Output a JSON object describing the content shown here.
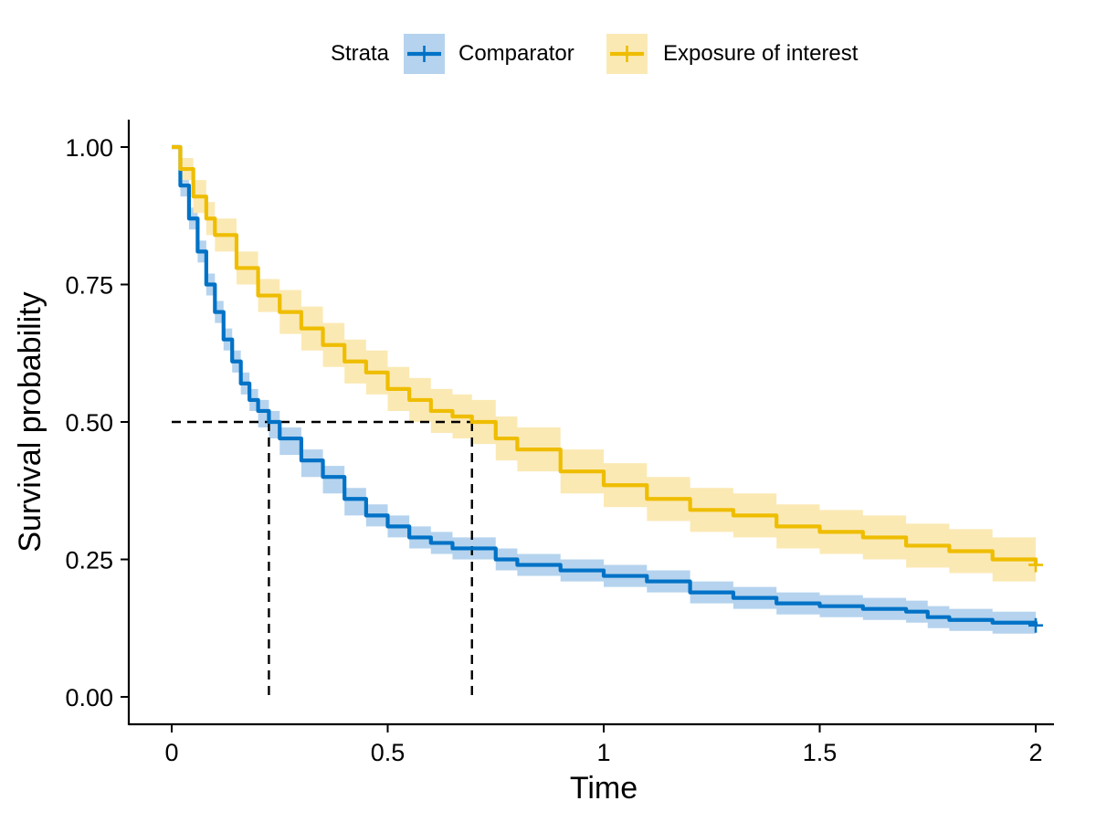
{
  "chart_data": {
    "type": "line",
    "subtype": "kaplan-meier survival curve",
    "xlabel": "Time",
    "ylabel": "Survival probability",
    "xlim": [
      0,
      2
    ],
    "ylim": [
      0,
      1
    ],
    "x_ticks": [
      0,
      0.5,
      1,
      1.5,
      2
    ],
    "x_tick_labels": [
      "0",
      "0.5",
      "1",
      "1.5",
      "2"
    ],
    "y_ticks": [
      0,
      0.25,
      0.5,
      0.75,
      1.0
    ],
    "y_tick_labels": [
      "0.00",
      "0.25",
      "0.50",
      "0.75",
      "1.00"
    ],
    "grid": false,
    "legend": {
      "placement": "top",
      "title": "Strata",
      "entries": [
        "Comparator",
        "Exposure of interest"
      ]
    },
    "median_reference": {
      "y": 0.5,
      "x_values": [
        0.225,
        0.695
      ]
    },
    "series": [
      {
        "name": "Comparator",
        "color": "#0072c6",
        "band_color": "#b5d3ee",
        "x": [
          0,
          0.02,
          0.04,
          0.06,
          0.08,
          0.1,
          0.12,
          0.14,
          0.16,
          0.18,
          0.2,
          0.225,
          0.25,
          0.3,
          0.35,
          0.4,
          0.45,
          0.5,
          0.55,
          0.6,
          0.65,
          0.7,
          0.75,
          0.8,
          0.9,
          1.0,
          1.1,
          1.2,
          1.3,
          1.4,
          1.5,
          1.6,
          1.7,
          1.75,
          1.8,
          1.9,
          2.0
        ],
        "y": [
          1.0,
          0.93,
          0.87,
          0.81,
          0.75,
          0.7,
          0.65,
          0.61,
          0.57,
          0.54,
          0.52,
          0.5,
          0.47,
          0.43,
          0.4,
          0.36,
          0.33,
          0.31,
          0.29,
          0.28,
          0.27,
          0.27,
          0.25,
          0.24,
          0.23,
          0.22,
          0.21,
          0.19,
          0.18,
          0.17,
          0.165,
          0.16,
          0.155,
          0.145,
          0.14,
          0.135,
          0.13
        ],
        "lower": [
          1.0,
          0.91,
          0.85,
          0.79,
          0.73,
          0.68,
          0.63,
          0.59,
          0.55,
          0.52,
          0.49,
          0.47,
          0.44,
          0.4,
          0.37,
          0.33,
          0.31,
          0.29,
          0.27,
          0.26,
          0.25,
          0.25,
          0.23,
          0.22,
          0.21,
          0.2,
          0.19,
          0.17,
          0.16,
          0.15,
          0.145,
          0.14,
          0.135,
          0.125,
          0.12,
          0.115,
          0.11
        ],
        "upper": [
          1.0,
          0.95,
          0.89,
          0.83,
          0.77,
          0.72,
          0.67,
          0.63,
          0.59,
          0.56,
          0.54,
          0.52,
          0.49,
          0.45,
          0.42,
          0.38,
          0.35,
          0.33,
          0.31,
          0.3,
          0.29,
          0.29,
          0.27,
          0.26,
          0.25,
          0.24,
          0.23,
          0.21,
          0.2,
          0.19,
          0.185,
          0.18,
          0.175,
          0.165,
          0.16,
          0.155,
          0.15
        ],
        "censor_x": [
          2.0
        ]
      },
      {
        "name": "Exposure of interest",
        "color": "#eebd00",
        "band_color": "#fbe9b4",
        "x": [
          0,
          0.02,
          0.05,
          0.08,
          0.1,
          0.15,
          0.2,
          0.25,
          0.3,
          0.35,
          0.4,
          0.45,
          0.5,
          0.55,
          0.6,
          0.65,
          0.695,
          0.75,
          0.8,
          0.9,
          1.0,
          1.1,
          1.2,
          1.3,
          1.4,
          1.5,
          1.6,
          1.7,
          1.8,
          1.9,
          2.0
        ],
        "y": [
          1.0,
          0.96,
          0.91,
          0.87,
          0.84,
          0.78,
          0.73,
          0.7,
          0.67,
          0.64,
          0.61,
          0.59,
          0.56,
          0.54,
          0.52,
          0.51,
          0.5,
          0.47,
          0.45,
          0.41,
          0.385,
          0.36,
          0.34,
          0.33,
          0.31,
          0.3,
          0.29,
          0.275,
          0.265,
          0.25,
          0.24
        ],
        "lower": [
          1.0,
          0.94,
          0.88,
          0.84,
          0.81,
          0.75,
          0.7,
          0.66,
          0.63,
          0.6,
          0.57,
          0.55,
          0.52,
          0.5,
          0.48,
          0.47,
          0.46,
          0.43,
          0.41,
          0.37,
          0.345,
          0.32,
          0.3,
          0.29,
          0.27,
          0.26,
          0.25,
          0.235,
          0.225,
          0.21,
          0.2
        ],
        "upper": [
          1.0,
          0.98,
          0.94,
          0.9,
          0.87,
          0.81,
          0.76,
          0.74,
          0.71,
          0.68,
          0.65,
          0.63,
          0.6,
          0.58,
          0.56,
          0.55,
          0.54,
          0.51,
          0.49,
          0.45,
          0.425,
          0.4,
          0.38,
          0.37,
          0.35,
          0.34,
          0.33,
          0.315,
          0.305,
          0.29,
          0.28
        ],
        "censor_x": [
          2.0
        ]
      }
    ]
  }
}
